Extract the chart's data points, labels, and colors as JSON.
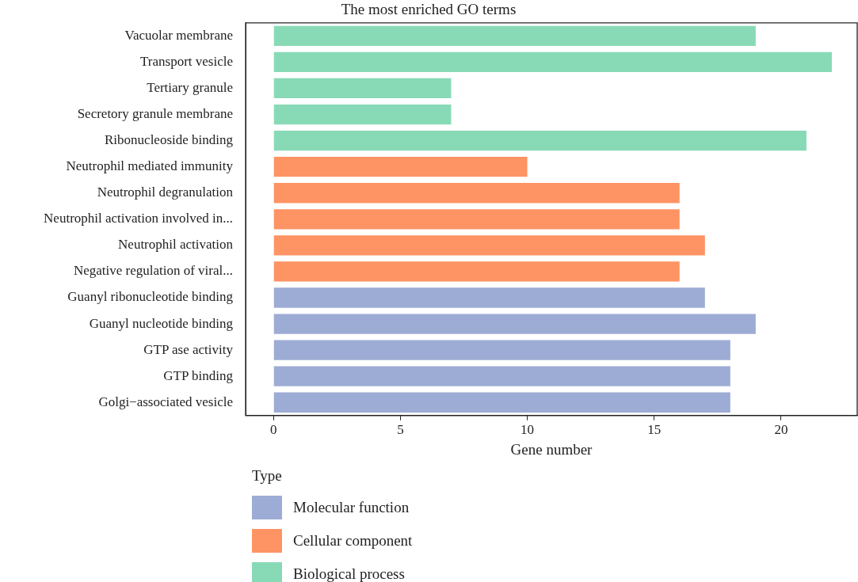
{
  "chart_data": {
    "type": "bar",
    "orientation": "horizontal",
    "title": "The most enriched GO terms",
    "xlabel": "Gene number",
    "legend_title": "Type",
    "legend": "bottom left",
    "grid": false,
    "categories": [
      "Vacuolar membrane",
      "Transport vesicle",
      "Tertiary granule",
      "Secretory granule membrane",
      "Ribonucleoside binding",
      "Neutrophil mediated immunity",
      "Neutrophil degranulation",
      "Neutrophil activation involved in...",
      "Neutrophil activation",
      "Negative regulation of viral...",
      "Guanyl ribonucleotide binding",
      "Guanyl nucleotide binding",
      "GTP ase activity",
      "GTP binding",
      "Golgi−associated vesicle"
    ],
    "xlim": [
      -1.1,
      23
    ],
    "xticks": [
      0,
      5,
      10,
      15,
      20
    ],
    "series": [
      {
        "name": "Molecular function",
        "color": "#9dacd4",
        "values": [
          null,
          null,
          null,
          null,
          null,
          null,
          null,
          null,
          null,
          null,
          17,
          19,
          18,
          18,
          18
        ]
      },
      {
        "name": "Cellular component",
        "color": "#fe9364",
        "values": [
          null,
          null,
          null,
          null,
          null,
          10,
          16,
          16,
          17,
          16,
          null,
          null,
          null,
          null,
          null
        ]
      },
      {
        "name": "Biological process",
        "color": "#88dab6",
        "values": [
          19,
          22,
          7,
          7,
          21,
          null,
          null,
          null,
          null,
          null,
          null,
          null,
          null,
          null,
          null
        ]
      }
    ]
  }
}
